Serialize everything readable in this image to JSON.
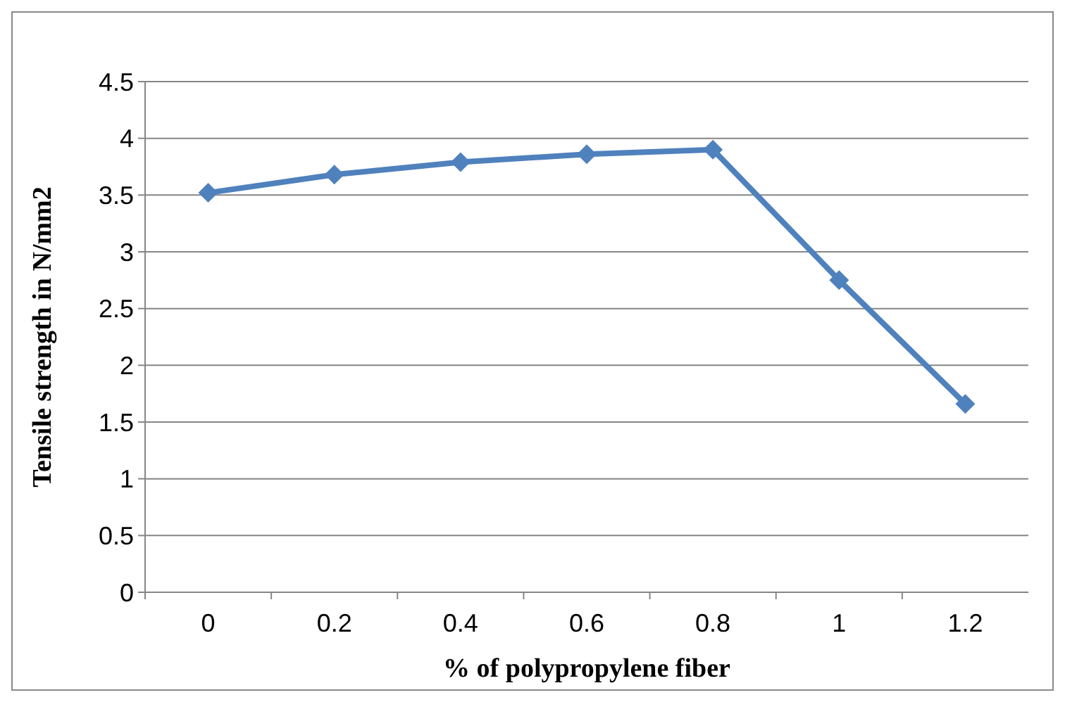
{
  "chart_data": {
    "type": "line",
    "xlabel": "% of polypropylene fiber",
    "ylabel": "Tensile strength in N/mm2",
    "categories": [
      "0",
      "0.2",
      "0.4",
      "0.6",
      "0.8",
      "1",
      "1.2"
    ],
    "series": [
      {
        "color": "#4f81bd",
        "values": [
          3.52,
          3.68,
          3.79,
          3.86,
          3.9,
          2.75,
          1.66
        ]
      }
    ],
    "ylim": [
      0,
      4.5
    ],
    "yticks": [
      0,
      0.5,
      1,
      1.5,
      2,
      2.5,
      3,
      3.5,
      4,
      4.5
    ],
    "grid": "y",
    "marker": "diamond",
    "line_style": "solid"
  }
}
